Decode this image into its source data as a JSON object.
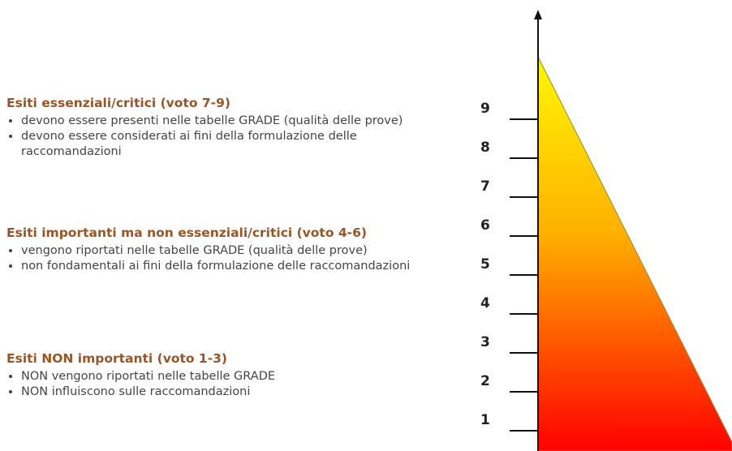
{
  "sections": [
    {
      "title": "Esiti essenziali/critici (voto 7-9)",
      "items": [
        "devono essere presenti nelle tabelle GRADE (qualità delle prove)",
        "devono essere considerati ai fini della formulazione delle raccomandazioni"
      ]
    },
    {
      "title": "Esiti importanti ma non essenziali/critici (voto 4-6)",
      "items": [
        "vengono riportati nelle tabelle GRADE (qualità delle prove)",
        "non fondamentali ai fini della formulazione delle raccomandazioni"
      ]
    },
    {
      "title": "Esiti NON importanti (voto 1-3)",
      "items": [
        "NON vengono riportati nelle tabelle GRADE",
        "NON influiscono sulle raccomandazioni"
      ]
    }
  ],
  "scale": [
    "1",
    "2",
    "3",
    "4",
    "5",
    "6",
    "7",
    "8",
    "9"
  ]
}
